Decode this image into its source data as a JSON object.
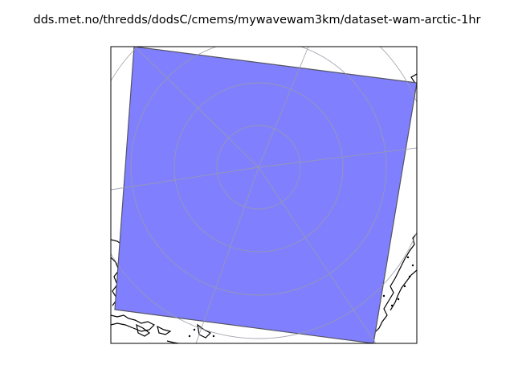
{
  "figure": {
    "title": "dds.met.no/thredds/dodsC/cmems/mywavewam3km/dataset-wam-arctic-1hr"
  },
  "map": {
    "projection": "north-polar-stereographic",
    "graticule": "on",
    "colors": {
      "domain_fill": "#8080ff",
      "domain_edge": "#555566",
      "graticule": "#b0b0b0",
      "coastline": "#000000",
      "frame": "#000000"
    }
  }
}
